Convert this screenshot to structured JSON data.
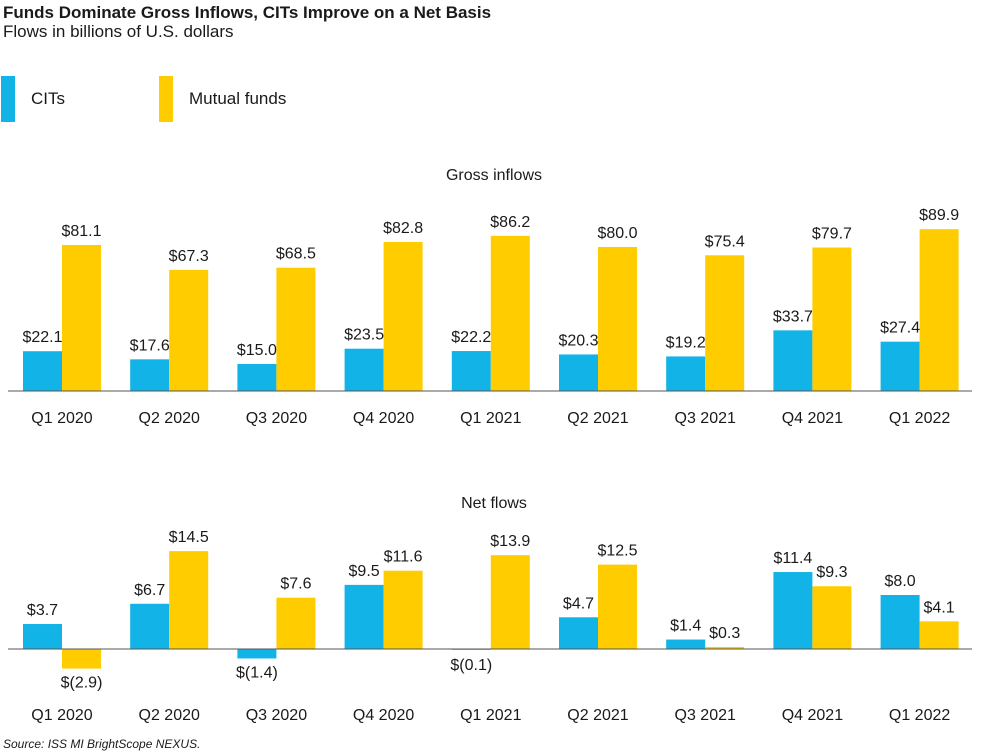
{
  "title": "Funds Dominate Gross Inflows, CITs Improve on a Net Basis",
  "subtitle": "Flows in billions of U.S. dollars",
  "source": "Source: ISS MI BrightScope NEXUS.",
  "colors": {
    "cits": "#12b3e6",
    "mutual_funds": "#ffcc00",
    "axis": "#555555",
    "text": "#1a1a1a"
  },
  "legend": [
    {
      "label": "CITs",
      "color": "#12b3e6"
    },
    {
      "label": "Mutual funds",
      "color": "#ffcc00"
    }
  ],
  "chart_data": [
    {
      "type": "bar",
      "title": "Gross inflows",
      "categories": [
        "Q1 2020",
        "Q2 2020",
        "Q3 2020",
        "Q4 2020",
        "Q1 2021",
        "Q2 2021",
        "Q3 2021",
        "Q4 2021",
        "Q1 2022"
      ],
      "series": [
        {
          "name": "CITs",
          "values": [
            22.1,
            17.6,
            15.0,
            23.5,
            22.2,
            20.3,
            19.2,
            33.7,
            27.4
          ],
          "labels": [
            "$22.1",
            "$17.6",
            "$15.0",
            "$23.5",
            "$22.2",
            "$20.3",
            "$19.2",
            "$33.7",
            "$27.4"
          ]
        },
        {
          "name": "Mutual funds",
          "values": [
            81.1,
            67.3,
            68.5,
            82.8,
            86.2,
            80.0,
            75.4,
            79.7,
            89.9
          ],
          "labels": [
            "$81.1",
            "$67.3",
            "$68.5",
            "$82.8",
            "$86.2",
            "$80.0",
            "$75.4",
            "$79.7",
            "$89.9"
          ]
        }
      ],
      "ylim": [
        0,
        100
      ],
      "grid": false,
      "legend": "top-left"
    },
    {
      "type": "bar",
      "title": "Net flows",
      "categories": [
        "Q1 2020",
        "Q2 2020",
        "Q3 2020",
        "Q4 2020",
        "Q1 2021",
        "Q2 2021",
        "Q3 2021",
        "Q4 2021",
        "Q1 2022"
      ],
      "series": [
        {
          "name": "CITs",
          "values": [
            3.7,
            6.7,
            -1.4,
            9.5,
            -0.1,
            4.7,
            1.4,
            11.4,
            8.0
          ],
          "labels": [
            "$3.7",
            "$6.7",
            "$(1.4)",
            "$9.5",
            "$(0.1)",
            "$4.7",
            "$1.4",
            "$11.4",
            "$8.0"
          ]
        },
        {
          "name": "Mutual funds",
          "values": [
            -2.9,
            14.5,
            7.6,
            11.6,
            13.9,
            12.5,
            0.3,
            9.3,
            4.1
          ],
          "labels": [
            "$(2.9)",
            "$14.5",
            "$7.6",
            "$11.6",
            "$13.9",
            "$12.5",
            "$0.3",
            "$9.3",
            "$4.1"
          ]
        }
      ],
      "ylim": [
        -3,
        15
      ],
      "grid": false,
      "legend": "top-left"
    }
  ]
}
